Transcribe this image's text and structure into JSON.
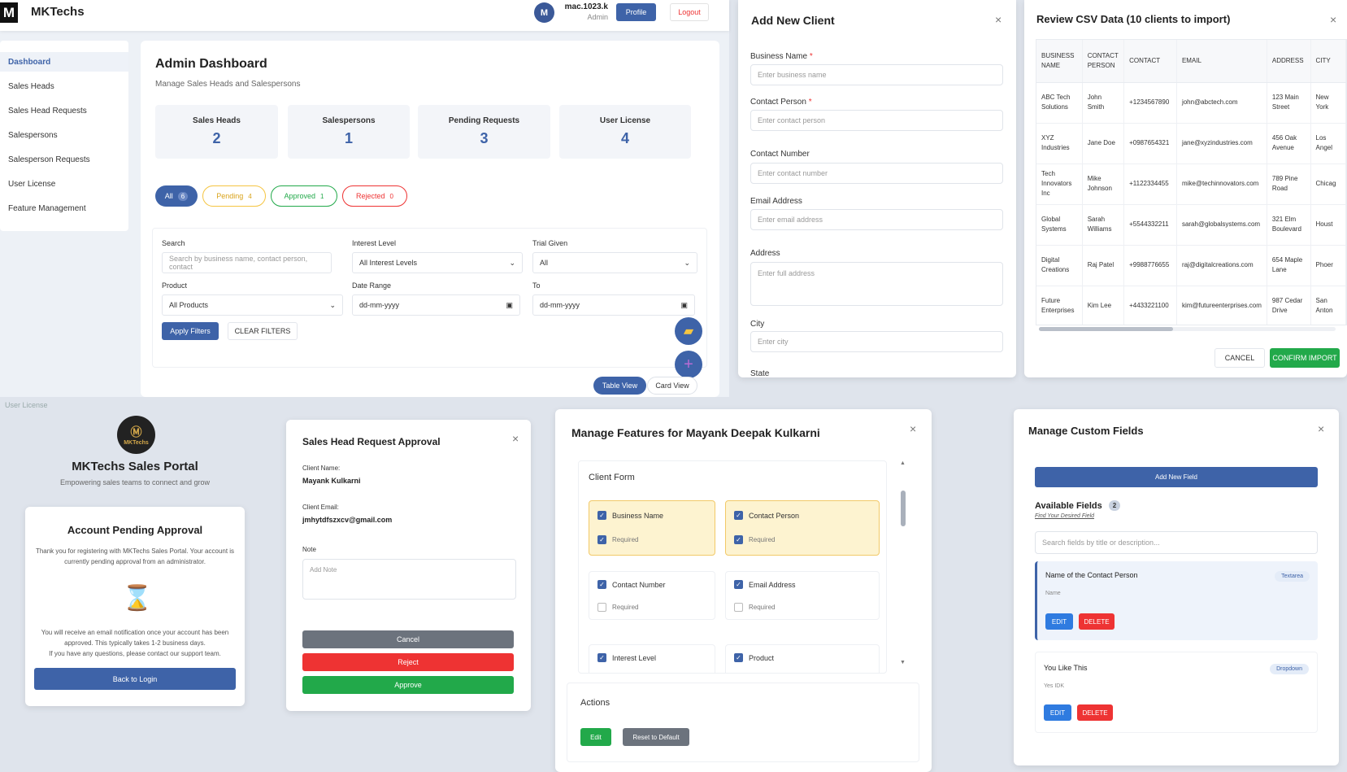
{
  "app": {
    "logo_letter": "M",
    "brand": "MKTechs"
  },
  "topbar": {
    "avatar_letter": "M",
    "user_name": "mac.1023.k",
    "user_role": "Admin",
    "profile_label": "Profile",
    "logout_label": "Logout"
  },
  "sidebar": {
    "items": [
      {
        "label": "Dashboard",
        "active": true
      },
      {
        "label": "Sales Heads"
      },
      {
        "label": "Sales Head Requests"
      },
      {
        "label": "Salespersons"
      },
      {
        "label": "Salesperson Requests"
      },
      {
        "label": "User License"
      },
      {
        "label": "Feature Management"
      }
    ]
  },
  "dashboard": {
    "title": "Admin Dashboard",
    "subtitle": "Manage Sales Heads and Salespersons",
    "stats": [
      {
        "label": "Sales Heads",
        "value": "2"
      },
      {
        "label": "Salespersons",
        "value": "1"
      },
      {
        "label": "Pending Requests",
        "value": "3"
      },
      {
        "label": "User License",
        "value": "4"
      }
    ],
    "pills": [
      {
        "label": "All",
        "count": "6"
      },
      {
        "label": "Pending",
        "count": "4"
      },
      {
        "label": "Approved",
        "count": "1"
      },
      {
        "label": "Rejected",
        "count": "0"
      }
    ],
    "filters": {
      "search_label": "Search",
      "search_placeholder": "Search by business name, contact person, contact",
      "interest_label": "Interest Level",
      "interest_value": "All Interest Levels",
      "trial_label": "Trial Given",
      "trial_value": "All",
      "product_label": "Product",
      "product_value": "All Products",
      "date_label": "Date Range",
      "date_from": "dd-mm-yyyy",
      "to_label": "To",
      "date_to": "dd-mm-yyyy",
      "apply_label": "Apply Filters",
      "clear_label": "CLEAR FILTERS"
    },
    "table_view_label": "Table View",
    "card_view_label": "Card View"
  },
  "add_client": {
    "title": "Add New Client",
    "fields": [
      {
        "label": "Business Name",
        "required": true,
        "placeholder": "Enter business name"
      },
      {
        "label": "Contact Person",
        "required": true,
        "placeholder": "Enter contact person"
      },
      {
        "label": "Contact Number",
        "required": false,
        "placeholder": "Enter contact number"
      },
      {
        "label": "Email Address",
        "required": false,
        "placeholder": "Enter email address"
      },
      {
        "label": "Address",
        "required": false,
        "placeholder": "Enter full address"
      },
      {
        "label": "City",
        "required": false,
        "placeholder": "Enter city"
      },
      {
        "label": "State",
        "required": false,
        "placeholder": ""
      }
    ],
    "required_mark": "*"
  },
  "csv": {
    "title": "Review CSV Data (10 clients to import)",
    "columns": [
      "BUSINESS NAME",
      "CONTACT PERSON",
      "CONTACT",
      "EMAIL",
      "ADDRESS",
      "CITY"
    ],
    "rows": [
      [
        "ABC Tech Solutions",
        "John Smith",
        "+1234567890",
        "john@abctech.com",
        "123 Main Street",
        "New York"
      ],
      [
        "XYZ Industries",
        "Jane Doe",
        "+0987654321",
        "jane@xyzindustries.com",
        "456 Oak Avenue",
        "Los Angel"
      ],
      [
        "Tech Innovators Inc",
        "Mike Johnson",
        "+1122334455",
        "mike@techinnovators.com",
        "789 Pine Road",
        "Chicag"
      ],
      [
        "Global Systems",
        "Sarah Williams",
        "+5544332211",
        "sarah@globalsystems.com",
        "321 Elm Boulevard",
        "Houst"
      ],
      [
        "Digital Creations",
        "Raj Patel",
        "+9988776655",
        "raj@digitalcreations.com",
        "654 Maple Lane",
        "Phoer"
      ],
      [
        "Future Enterprises",
        "Kim Lee",
        "+4433221100",
        "kim@futureenterprises.com",
        "987 Cedar Drive",
        "San Anton"
      ]
    ],
    "cancel_label": "CANCEL",
    "confirm_label": "CONFIRM IMPORT"
  },
  "portal": {
    "breadcrumb": "User License",
    "logo_text": "MKTechs",
    "title": "MKTechs Sales Portal",
    "subtitle": "Empowering sales teams to connect and grow",
    "pending_title": "Account Pending Approval",
    "text1": "Thank you for registering with MKTechs Sales Portal. Your account is currently pending approval from an administrator.",
    "text2": "You will receive an email notification once your account has been approved. This typically takes 1-2 business days.",
    "text3": "If you have any questions, please contact our support team.",
    "back_label": "Back to Login"
  },
  "approval": {
    "title": "Sales Head Request Approval",
    "client_name_label": "Client Name:",
    "client_name": "Mayank Kulkarni",
    "client_email_label": "Client Email:",
    "client_email": "jmhytdfszxcv@gmail.com",
    "note_label": "Note",
    "note_placeholder": "Add Note",
    "cancel_label": "Cancel",
    "reject_label": "Reject",
    "approve_label": "Approve"
  },
  "features": {
    "title": "Manage Features for Mayank Deepak Kulkarni",
    "section": "Client Form",
    "required_label": "Required",
    "items": [
      {
        "label": "Business Name",
        "checked": true,
        "required": true
      },
      {
        "label": "Contact Person",
        "checked": true,
        "required": true
      },
      {
        "label": "Contact Number",
        "checked": true,
        "required": false
      },
      {
        "label": "Email Address",
        "checked": true,
        "required": false
      },
      {
        "label": "Interest Level",
        "checked": true
      },
      {
        "label": "Product",
        "checked": true
      }
    ],
    "actions_title": "Actions",
    "edit_label": "Edit",
    "reset_label": "Reset to Default"
  },
  "custom": {
    "title": "Manage Custom Fields",
    "add_label": "Add New Field",
    "available_label": "Available Fields",
    "available_count": "2",
    "find_label": "Find Your Desired Field",
    "search_placeholder": "Search fields by title or description...",
    "fields": [
      {
        "title": "Name of the Contact Person",
        "type": "Textarea",
        "desc": "Name"
      },
      {
        "title": "You Like This",
        "type": "Dropdown",
        "desc": "Yes IDK"
      }
    ],
    "edit_label": "EDIT",
    "delete_label": "DELETE"
  },
  "colors": {
    "primary": "#3e63a8",
    "success": "#22a94a",
    "danger": "#e33333",
    "warning": "#f5c542"
  }
}
